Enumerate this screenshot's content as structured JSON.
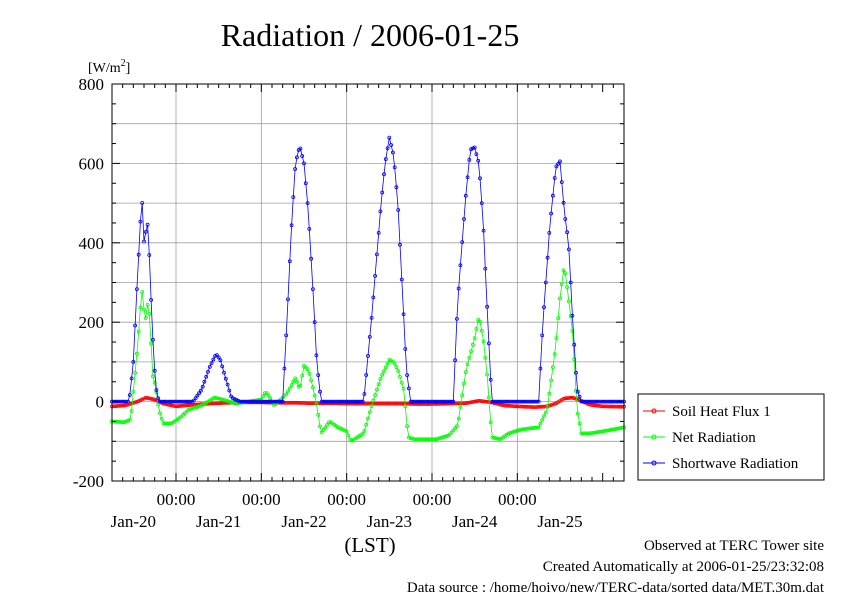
{
  "chart_data": {
    "type": "line",
    "title": "Radiation / 2006-01-25",
    "ylabel_base": "[W/m",
    "ylabel_sup": "2",
    "ylabel_end": "]",
    "xlabel": "(LST)",
    "ylim": [
      -200,
      800
    ],
    "yticks": [
      "800",
      "600",
      "400",
      "200",
      "0",
      "-200"
    ],
    "ytick_values": [
      800,
      600,
      400,
      200,
      0,
      -200
    ],
    "x_unit": "days since 2006-01-19 00:00 LST",
    "xlim": [
      0.25,
      6.25
    ],
    "time_ticks": [
      {
        "x": 1.0,
        "label": "00:00"
      },
      {
        "x": 2.0,
        "label": "00:00"
      },
      {
        "x": 3.0,
        "label": "00:00"
      },
      {
        "x": 4.0,
        "label": "00:00"
      },
      {
        "x": 5.0,
        "label": "00:00"
      }
    ],
    "date_ticks": [
      {
        "x": 0.5,
        "label": "Jan-20"
      },
      {
        "x": 1.5,
        "label": "Jan-21"
      },
      {
        "x": 2.5,
        "label": "Jan-22"
      },
      {
        "x": 3.5,
        "label": "Jan-23"
      },
      {
        "x": 4.5,
        "label": "Jan-24"
      },
      {
        "x": 5.5,
        "label": "Jan-25"
      }
    ],
    "grid": true,
    "legend_position": "right",
    "series": [
      {
        "name": "Soil Heat Flux 1",
        "color": "#ff0000",
        "points": [
          [
            0.25,
            -12
          ],
          [
            0.4,
            -10
          ],
          [
            0.55,
            0
          ],
          [
            0.65,
            10
          ],
          [
            0.75,
            5
          ],
          [
            0.85,
            -5
          ],
          [
            1.0,
            -12
          ],
          [
            1.2,
            -8
          ],
          [
            1.4,
            -5
          ],
          [
            1.6,
            -3
          ],
          [
            1.8,
            -2
          ],
          [
            2.0,
            -2
          ],
          [
            2.2,
            -3
          ],
          [
            2.4,
            -3
          ],
          [
            2.6,
            -4
          ],
          [
            2.8,
            -4
          ],
          [
            3.0,
            -5
          ],
          [
            3.2,
            -5
          ],
          [
            3.4,
            -5
          ],
          [
            3.6,
            -5
          ],
          [
            3.8,
            -6
          ],
          [
            4.0,
            -6
          ],
          [
            4.2,
            -5
          ],
          [
            4.4,
            -4
          ],
          [
            4.55,
            2
          ],
          [
            4.7,
            -2
          ],
          [
            4.85,
            -10
          ],
          [
            5.0,
            -12
          ],
          [
            5.2,
            -14
          ],
          [
            5.35,
            -12
          ],
          [
            5.45,
            -5
          ],
          [
            5.55,
            8
          ],
          [
            5.65,
            10
          ],
          [
            5.75,
            2
          ],
          [
            5.85,
            -8
          ],
          [
            6.0,
            -12
          ],
          [
            6.25,
            -13
          ]
        ]
      },
      {
        "name": "Net Radiation",
        "color": "#00ff00",
        "points": [
          [
            0.25,
            -50
          ],
          [
            0.4,
            -52
          ],
          [
            0.47,
            -45
          ],
          [
            0.55,
            140
          ],
          [
            0.6,
            285
          ],
          [
            0.64,
            200
          ],
          [
            0.67,
            250
          ],
          [
            0.7,
            200
          ],
          [
            0.72,
            70
          ],
          [
            0.76,
            40
          ],
          [
            0.8,
            -20
          ],
          [
            0.85,
            -55
          ],
          [
            0.95,
            -55
          ],
          [
            1.05,
            -40
          ],
          [
            1.15,
            -20
          ],
          [
            1.3,
            -10
          ],
          [
            1.45,
            10
          ],
          [
            1.55,
            5
          ],
          [
            1.7,
            -5
          ],
          [
            1.85,
            0
          ],
          [
            2.0,
            5
          ],
          [
            2.05,
            25
          ],
          [
            2.1,
            10
          ],
          [
            2.15,
            -10
          ],
          [
            2.3,
            20
          ],
          [
            2.4,
            60
          ],
          [
            2.45,
            30
          ],
          [
            2.5,
            90
          ],
          [
            2.55,
            80
          ],
          [
            2.6,
            40
          ],
          [
            2.65,
            -10
          ],
          [
            2.7,
            -80
          ],
          [
            2.8,
            -50
          ],
          [
            2.9,
            -65
          ],
          [
            3.0,
            -75
          ],
          [
            3.05,
            -100
          ],
          [
            3.2,
            -80
          ],
          [
            3.3,
            -5
          ],
          [
            3.4,
            60
          ],
          [
            3.5,
            105
          ],
          [
            3.55,
            100
          ],
          [
            3.6,
            80
          ],
          [
            3.67,
            30
          ],
          [
            3.72,
            -90
          ],
          [
            3.8,
            -95
          ],
          [
            3.95,
            -95
          ],
          [
            4.05,
            -95
          ],
          [
            4.2,
            -85
          ],
          [
            4.3,
            -60
          ],
          [
            4.4,
            80
          ],
          [
            4.5,
            160
          ],
          [
            4.55,
            215
          ],
          [
            4.6,
            160
          ],
          [
            4.65,
            60
          ],
          [
            4.7,
            -90
          ],
          [
            4.8,
            -95
          ],
          [
            4.9,
            -80
          ],
          [
            5.05,
            -70
          ],
          [
            5.25,
            -65
          ],
          [
            5.35,
            -20
          ],
          [
            5.45,
            140
          ],
          [
            5.5,
            260
          ],
          [
            5.55,
            345
          ],
          [
            5.6,
            260
          ],
          [
            5.65,
            170
          ],
          [
            5.7,
            -20
          ],
          [
            5.75,
            -80
          ],
          [
            5.85,
            -80
          ],
          [
            6.0,
            -75
          ],
          [
            6.25,
            -65
          ]
        ]
      },
      {
        "name": "Shortwave Radiation",
        "color": "#0000ff",
        "points": [
          [
            0.25,
            0
          ],
          [
            0.45,
            0
          ],
          [
            0.5,
            100
          ],
          [
            0.55,
            320
          ],
          [
            0.6,
            520
          ],
          [
            0.63,
            380
          ],
          [
            0.66,
            470
          ],
          [
            0.69,
            360
          ],
          [
            0.72,
            190
          ],
          [
            0.76,
            40
          ],
          [
            0.8,
            0
          ],
          [
            1.2,
            0
          ],
          [
            1.3,
            30
          ],
          [
            1.4,
            90
          ],
          [
            1.47,
            120
          ],
          [
            1.52,
            105
          ],
          [
            1.58,
            60
          ],
          [
            1.65,
            10
          ],
          [
            1.75,
            0
          ],
          [
            2.25,
            0
          ],
          [
            2.3,
            200
          ],
          [
            2.35,
            430
          ],
          [
            2.4,
            600
          ],
          [
            2.45,
            645
          ],
          [
            2.5,
            600
          ],
          [
            2.55,
            480
          ],
          [
            2.6,
            300
          ],
          [
            2.65,
            100
          ],
          [
            2.7,
            0
          ],
          [
            3.2,
            0
          ],
          [
            3.3,
            230
          ],
          [
            3.4,
            490
          ],
          [
            3.45,
            600
          ],
          [
            3.5,
            665
          ],
          [
            3.55,
            620
          ],
          [
            3.6,
            500
          ],
          [
            3.65,
            290
          ],
          [
            3.7,
            80
          ],
          [
            3.75,
            0
          ],
          [
            4.25,
            0
          ],
          [
            4.3,
            250
          ],
          [
            4.4,
            530
          ],
          [
            4.45,
            635
          ],
          [
            4.5,
            640
          ],
          [
            4.55,
            600
          ],
          [
            4.6,
            450
          ],
          [
            4.65,
            220
          ],
          [
            4.7,
            0
          ],
          [
            5.25,
            0
          ],
          [
            5.3,
            200
          ],
          [
            5.38,
            440
          ],
          [
            5.45,
            590
          ],
          [
            5.5,
            605
          ],
          [
            5.55,
            480
          ],
          [
            5.6,
            400
          ],
          [
            5.65,
            200
          ],
          [
            5.7,
            30
          ],
          [
            5.75,
            0
          ],
          [
            6.25,
            0
          ]
        ]
      }
    ]
  },
  "footer": {
    "line1": "Observed at TERC Tower site",
    "line2": "Created Automatically at 2006-01-25/23:32:08",
    "line3": "Data source : /home/hoivo/new/TERC-data/sorted  data/MET.30m.dat"
  }
}
